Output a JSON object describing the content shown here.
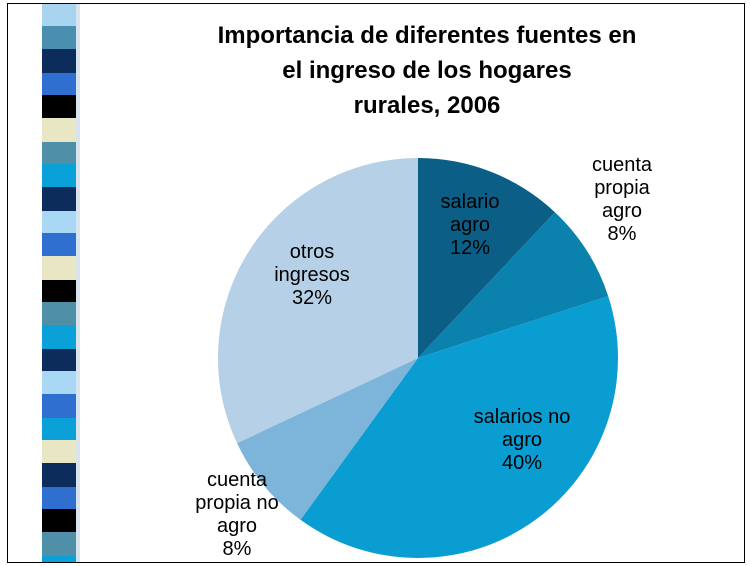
{
  "chart_data": {
    "type": "pie",
    "title": "Importancia de diferentes fuentes en\nel ingreso de los hogares\nrurales, 2006",
    "categories": [
      "salario\nagro",
      "cuenta\npropia\nagro",
      "salarios no\nagro",
      "cuenta\npropia no\nagro",
      "otros\ningresos"
    ],
    "values": [
      12,
      8,
      40,
      8,
      32
    ],
    "value_labels": [
      "12%",
      "8%",
      "40%",
      "8%",
      "32%"
    ],
    "colors": [
      "#0b5f87",
      "#0a82ad",
      "#0a9dd2",
      "#7db4d9",
      "#b6d1e7"
    ]
  }
}
